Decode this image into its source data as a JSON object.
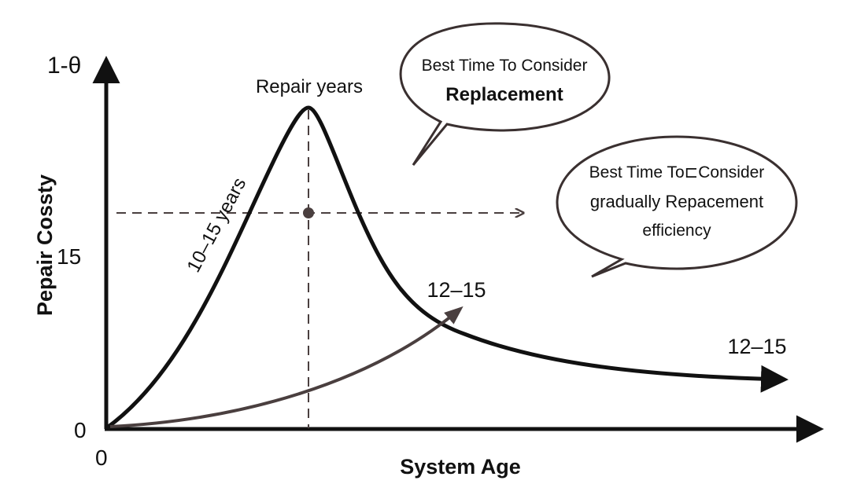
{
  "axes": {
    "y_title": "Pepair Cossty",
    "x_title": "System Age",
    "y_labels": [
      "1-θ",
      "15",
      "0"
    ],
    "x_origin_label": "0"
  },
  "annotations": {
    "peak": "Repair years",
    "rise": "10–15 years",
    "lower_curve": "12–15",
    "tail": "12–15"
  },
  "bubbles": [
    {
      "lines": [
        "Best Time To Consider",
        "Replacement"
      ]
    },
    {
      "lines": [
        "Best Time To⊏Consider",
        "gradually Repacement",
        "efficiency"
      ]
    }
  ]
}
